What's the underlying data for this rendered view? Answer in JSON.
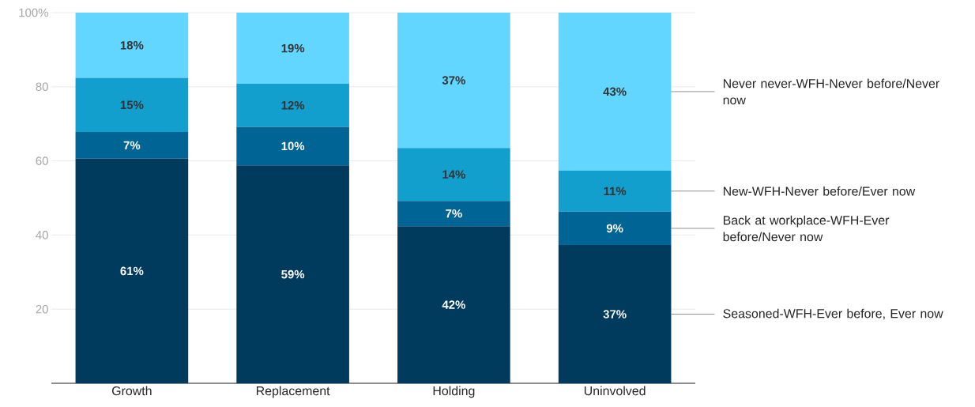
{
  "chart_data": {
    "type": "bar",
    "stacked": true,
    "grid": "y",
    "legend": "right",
    "categories": [
      "Growth",
      "Replacement",
      "Holding",
      "Uninvolved"
    ],
    "ylim": [
      0,
      100
    ],
    "yticks": [
      {
        "value": 0,
        "label": null
      },
      20,
      40,
      60,
      80,
      {
        "value": 100,
        "label": "100%"
      }
    ],
    "series": [
      {
        "name": "Seasoned-WFH-Ever before, Ever now",
        "color": "#003a5c",
        "values": [
          60.6,
          58.8,
          42.4,
          37.3
        ],
        "value_labels": [
          "61%",
          "59%",
          "42%",
          "37%"
        ]
      },
      {
        "name": "Back at workplace-WFH-Ever before/Never now",
        "color": "#006494",
        "values": [
          7.2,
          10.4,
          6.8,
          9.0
        ],
        "value_labels": [
          "7%",
          "10%",
          "7%",
          "9%"
        ]
      },
      {
        "name": "New-WFH-Never before/Ever now",
        "color": "#139fcd",
        "values": [
          14.6,
          11.6,
          14.3,
          11.1
        ],
        "value_labels": [
          "15%",
          "12%",
          "14%",
          "11%"
        ]
      },
      {
        "name": "Never never-WFH-Never before/Never now",
        "color": "#62d6ff",
        "values": [
          17.6,
          19.2,
          36.5,
          42.6
        ],
        "value_labels": [
          "18%",
          "19%",
          "37%",
          "43%"
        ]
      }
    ]
  }
}
